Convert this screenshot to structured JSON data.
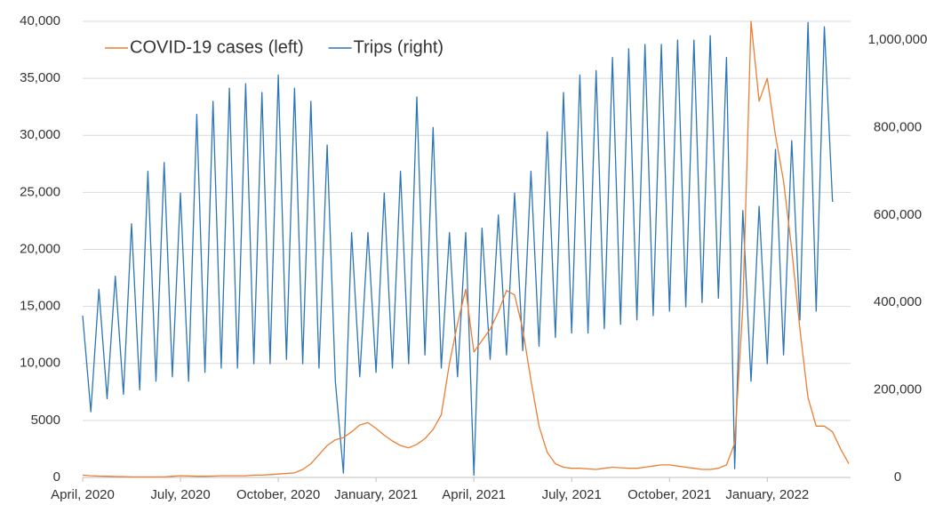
{
  "chart_data": {
    "type": "line",
    "categories": [
      "April, 2020",
      null,
      null,
      null,
      null,
      null,
      null,
      null,
      null,
      null,
      null,
      null,
      "July, 2020",
      null,
      null,
      null,
      null,
      null,
      null,
      null,
      null,
      null,
      null,
      null,
      "October, 2020",
      null,
      null,
      null,
      null,
      null,
      null,
      null,
      null,
      null,
      null,
      null,
      "January, 2021",
      null,
      null,
      null,
      null,
      null,
      null,
      null,
      null,
      null,
      null,
      null,
      "April, 2021",
      null,
      null,
      null,
      null,
      null,
      null,
      null,
      null,
      null,
      null,
      null,
      "July, 2021",
      null,
      null,
      null,
      null,
      null,
      null,
      null,
      null,
      null,
      null,
      null,
      "October, 2021",
      null,
      null,
      null,
      null,
      null,
      null,
      null,
      null,
      null,
      null,
      null,
      "January, 2022",
      null,
      null,
      null,
      null,
      null,
      null,
      null,
      null,
      null,
      null
    ],
    "series": [
      {
        "name": "Trips (right)",
        "color": "#2e75b6",
        "axis": "y2",
        "values": [
          370000,
          150000,
          430000,
          180000,
          460000,
          190000,
          580000,
          200000,
          700000,
          220000,
          720000,
          230000,
          650000,
          220000,
          830000,
          240000,
          860000,
          250000,
          890000,
          250000,
          900000,
          260000,
          880000,
          260000,
          920000,
          270000,
          890000,
          260000,
          860000,
          250000,
          760000,
          220000,
          10000,
          560000,
          230000,
          560000,
          240000,
          650000,
          250000,
          700000,
          260000,
          870000,
          280000,
          800000,
          250000,
          560000,
          230000,
          560000,
          5000,
          570000,
          270000,
          600000,
          280000,
          650000,
          290000,
          700000,
          300000,
          790000,
          320000,
          880000,
          330000,
          920000,
          330000,
          930000,
          340000,
          960000,
          350000,
          980000,
          360000,
          990000,
          370000,
          990000,
          380000,
          1000000,
          390000,
          1000000,
          400000,
          1010000,
          410000,
          960000,
          20000,
          610000,
          220000,
          620000,
          260000,
          750000,
          280000,
          770000,
          360000,
          1040000,
          380000,
          1030000,
          630000,
          null,
          null
        ]
      },
      {
        "name": "COVID-19 cases (left)",
        "color": "#ed7d31",
        "values": [
          200,
          150,
          120,
          100,
          80,
          60,
          50,
          50,
          50,
          50,
          50,
          100,
          150,
          130,
          100,
          100,
          120,
          150,
          150,
          150,
          150,
          200,
          200,
          250,
          300,
          350,
          400,
          700,
          1200,
          2000,
          2800,
          3300,
          3500,
          4000,
          4600,
          4800,
          4300,
          3700,
          3200,
          2800,
          2600,
          2900,
          3400,
          4200,
          5500,
          10000,
          13500,
          16500,
          11000,
          12000,
          13000,
          14500,
          16400,
          16000,
          13000,
          8500,
          4500,
          2200,
          1200,
          900,
          800,
          800,
          750,
          700,
          800,
          900,
          850,
          800,
          800,
          900,
          1000,
          1100,
          1100,
          1000,
          900,
          800,
          700,
          700,
          800,
          1100,
          3000,
          15000,
          40000,
          33000,
          35000,
          30000,
          26000,
          20000,
          13000,
          7000,
          4500,
          4500,
          4000,
          2500,
          1200
        ]
      }
    ],
    "ylim": [
      0,
      40000
    ],
    "yticks": [
      0,
      5000,
      {
        "value": 10000,
        "label": "10,000"
      },
      {
        "value": 15000,
        "label": "15,000"
      },
      {
        "value": 20000,
        "label": "20,000"
      },
      {
        "value": 25000,
        "label": "25,000"
      },
      {
        "value": 30000,
        "label": "30,000"
      },
      {
        "value": 35000,
        "label": "35,000"
      },
      {
        "value": 40000,
        "label": "40,000"
      }
    ],
    "y2lim": [
      0,
      1042700
    ],
    "y2ticks": [
      0,
      {
        "value": 200000,
        "label": "200,000"
      },
      {
        "value": 400000,
        "label": "400,000"
      },
      {
        "value": 600000,
        "label": "600,000"
      },
      {
        "value": 800000,
        "label": "800,000"
      },
      {
        "value": 1000000,
        "label": "1,000,000"
      }
    ],
    "grid": true,
    "legend": "top-left"
  }
}
